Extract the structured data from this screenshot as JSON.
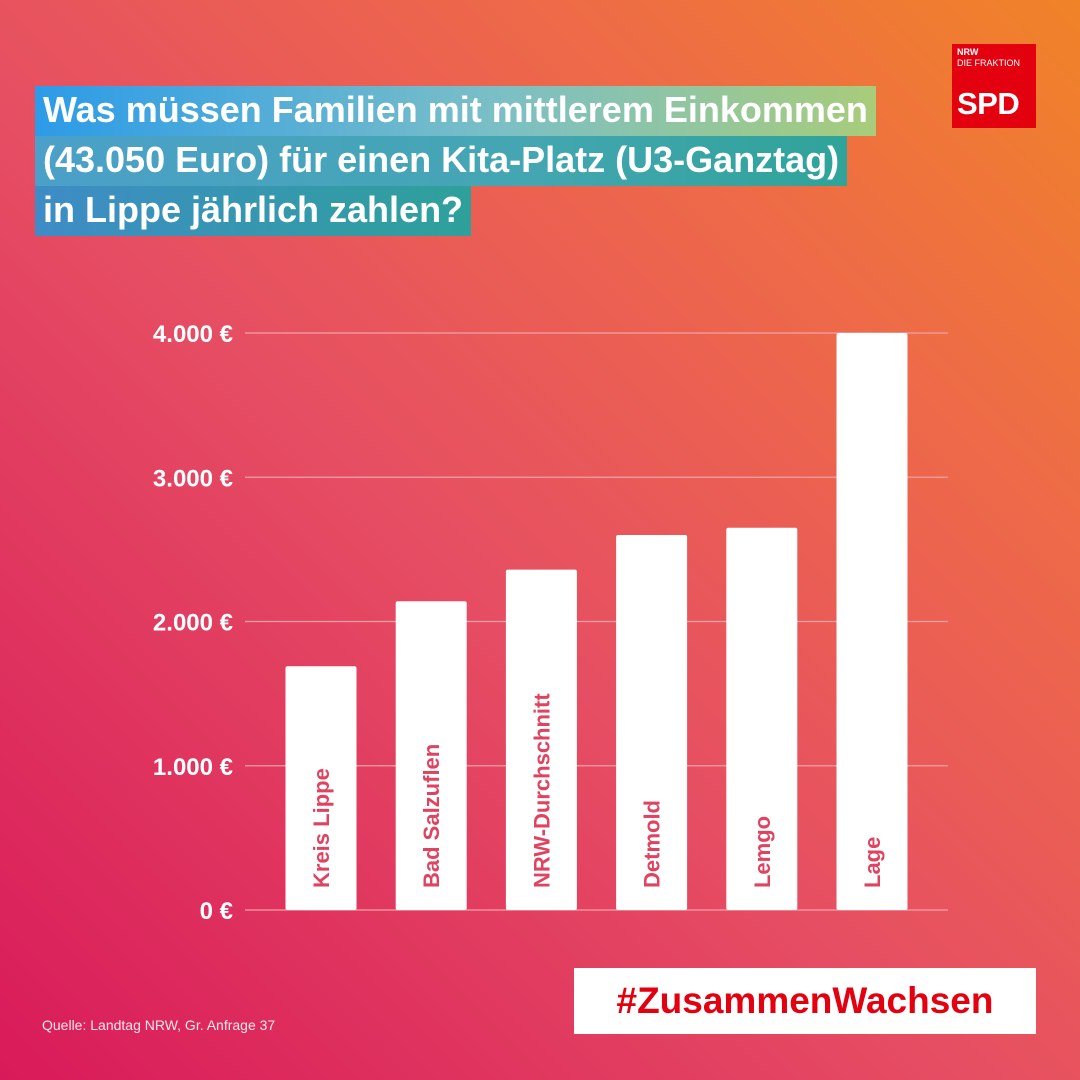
{
  "title": {
    "line1": "Was müssen Familien mit mittlerem Einkommen",
    "line2": "(43.050 Euro) für einen Kita-Platz (U3-Ganztag)",
    "line3": "in Lippe jährlich zahlen?"
  },
  "logo": {
    "line1": "NRW",
    "line2": "DIE FRAKTION",
    "brand": "SPD"
  },
  "hashtag": "#ZusammenWachsen",
  "source": "Quelle: Landtag NRW, Gr. Anfrage 37",
  "colors": {
    "bar": "#ffffff",
    "bar_label": "#e0435f",
    "gridline": "#f3a0a8",
    "axis_text": "#ffffff",
    "brand_red": "#e3000f"
  },
  "chart_data": {
    "type": "bar",
    "categories": [
      "Kreis Lippe",
      "Bad Salzuflen",
      "NRW-Durchschnitt",
      "Detmold",
      "Lemgo",
      "Lage"
    ],
    "values": [
      1690,
      2140,
      2360,
      2600,
      2650,
      4000
    ],
    "ylim": [
      0,
      4000
    ],
    "yticks": [
      0,
      1000,
      2000,
      3000,
      4000
    ],
    "ytick_labels": [
      "0 €",
      "1.000 €",
      "2.000 €",
      "3.000 €",
      "4.000 €"
    ],
    "grid": true,
    "labels_inside_bars": true,
    "label_orientation": "vertical"
  }
}
